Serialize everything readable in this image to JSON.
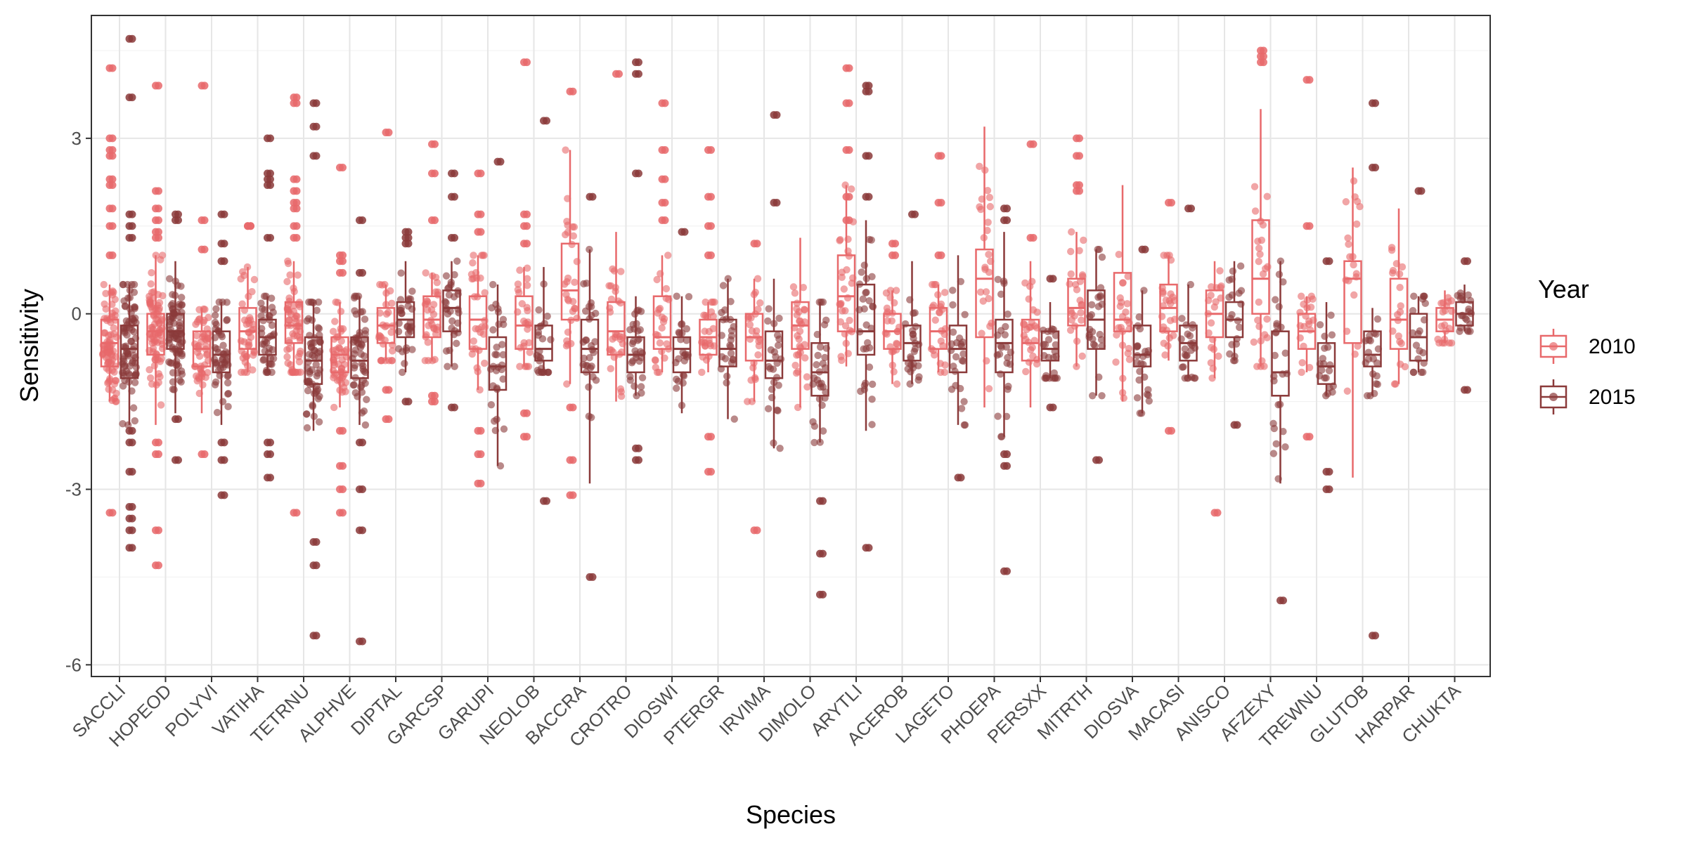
{
  "chart_data": {
    "type": "boxplot",
    "xlabel": "Species",
    "ylabel": "Sensitivity",
    "ylim": [
      -6.2,
      5.1
    ],
    "yticks": [
      -6,
      -3,
      0,
      3
    ],
    "ytick_labels": [
      "-6",
      "-3",
      "0",
      "3"
    ],
    "grid": true,
    "legend": {
      "title": "Year",
      "position": "right"
    },
    "categories": [
      "SACCLI",
      "HOPEOD",
      "POLYVI",
      "VATIHA",
      "TETRNU",
      "ALPHVE",
      "DIPTAL",
      "GARCSP",
      "GARUPI",
      "NEOLOB",
      "BACCRA",
      "CROTRO",
      "DIOSWI",
      "PTERGR",
      "IRVIMA",
      "DIMOLO",
      "ARYTLI",
      "ACEROB",
      "LAGETO",
      "PHOEPA",
      "PERSXX",
      "MITRTH",
      "DIOSVA",
      "MACASI",
      "ANISCO",
      "AFZEXY",
      "TREWNU",
      "GLUTOB",
      "HARPAR",
      "CHUKTA"
    ],
    "series": [
      {
        "name": "2010",
        "color": "#E8696B",
        "boxes": [
          {
            "min": -1.5,
            "q1": -0.9,
            "median": -0.5,
            "q3": -0.1,
            "max": 0.5,
            "n": 80,
            "outliers": [
              4.2,
              3.0,
              2.8,
              2.7,
              2.3,
              2.2,
              1.8,
              1.5,
              1.0,
              -3.4
            ]
          },
          {
            "min": -1.9,
            "q1": -0.7,
            "median": -0.3,
            "q3": 0.0,
            "max": 1.0,
            "n": 80,
            "outliers": [
              3.9,
              2.1,
              1.8,
              1.6,
              1.4,
              1.3,
              -2.2,
              -2.4,
              -3.7,
              -4.3
            ]
          },
          {
            "min": -1.7,
            "q1": -0.9,
            "median": -0.6,
            "q3": -0.3,
            "max": 0.1,
            "n": 50,
            "outliers": [
              3.9,
              1.6,
              1.1,
              -2.4
            ]
          },
          {
            "min": -1.0,
            "q1": -0.6,
            "median": -0.3,
            "q3": 0.1,
            "max": 0.8,
            "n": 40,
            "outliers": [
              1.5,
              1.5
            ]
          },
          {
            "min": -1.0,
            "q1": -0.5,
            "median": -0.2,
            "q3": 0.2,
            "max": 0.9,
            "n": 60,
            "outliers": [
              3.7,
              3.6,
              2.3,
              2.1,
              1.9,
              1.8,
              1.5,
              1.3,
              -3.4
            ]
          },
          {
            "min": -1.6,
            "q1": -1.0,
            "median": -0.7,
            "q3": -0.4,
            "max": 0.2,
            "n": 50,
            "outliers": [
              2.5,
              1.0,
              0.9,
              0.7,
              -2.0,
              -2.6,
              -3.0,
              -3.4
            ]
          },
          {
            "min": -0.8,
            "q1": -0.5,
            "median": -0.2,
            "q3": 0.1,
            "max": 0.5,
            "n": 30,
            "outliers": [
              3.1,
              -1.3,
              -1.8
            ]
          },
          {
            "min": -0.8,
            "q1": -0.4,
            "median": -0.1,
            "q3": 0.3,
            "max": 0.7,
            "n": 30,
            "outliers": [
              2.9,
              2.4,
              1.6,
              -1.4,
              -1.5
            ]
          },
          {
            "min": -1.3,
            "q1": -0.6,
            "median": -0.1,
            "q3": 0.3,
            "max": 1.0,
            "n": 30,
            "outliers": [
              2.4,
              1.7,
              1.4,
              -2.0,
              -2.4,
              -2.9
            ]
          },
          {
            "min": -0.9,
            "q1": -0.6,
            "median": -0.2,
            "q3": 0.3,
            "max": 0.8,
            "n": 25,
            "outliers": [
              4.3,
              1.7,
              1.5,
              1.2,
              -1.7,
              -2.1
            ]
          },
          {
            "min": -1.2,
            "q1": -0.1,
            "median": 0.4,
            "q3": 1.2,
            "max": 2.8,
            "n": 30,
            "outliers": [
              3.8,
              -1.6,
              -2.5,
              -3.1
            ]
          },
          {
            "min": -1.5,
            "q1": -0.7,
            "median": -0.3,
            "q3": 0.2,
            "max": 1.4,
            "n": 30,
            "outliers": [
              4.1
            ]
          },
          {
            "min": -1.0,
            "q1": -0.6,
            "median": -0.4,
            "q3": 0.3,
            "max": 1.0,
            "n": 25,
            "outliers": [
              3.6,
              2.8,
              2.3,
              1.9,
              1.6
            ]
          },
          {
            "min": -1.0,
            "q1": -0.7,
            "median": -0.4,
            "q3": -0.1,
            "max": 0.2,
            "n": 25,
            "outliers": [
              2.8,
              2.0,
              1.5,
              1.0,
              -2.1,
              -2.7
            ]
          },
          {
            "min": -1.5,
            "q1": -0.8,
            "median": -0.4,
            "q3": 0.0,
            "max": 0.6,
            "n": 25,
            "outliers": [
              1.2,
              -3.7
            ]
          },
          {
            "min": -1.6,
            "q1": -0.6,
            "median": -0.2,
            "q3": 0.2,
            "max": 1.3,
            "n": 30,
            "outliers": []
          },
          {
            "min": -0.9,
            "q1": -0.3,
            "median": 0.3,
            "q3": 1.0,
            "max": 2.2,
            "n": 30,
            "outliers": [
              4.2,
              3.6,
              2.8,
              2.0,
              1.6
            ]
          },
          {
            "min": -1.2,
            "q1": -0.6,
            "median": -0.3,
            "q3": 0.0,
            "max": 0.4,
            "n": 25,
            "outliers": [
              1.2,
              1.0
            ]
          },
          {
            "min": -1.0,
            "q1": -0.6,
            "median": -0.3,
            "q3": 0.1,
            "max": 0.5,
            "n": 25,
            "outliers": [
              2.7,
              1.9,
              1.0
            ]
          },
          {
            "min": -1.6,
            "q1": -0.4,
            "median": 0.6,
            "q3": 1.1,
            "max": 3.2,
            "n": 25,
            "outliers": []
          },
          {
            "min": -1.6,
            "q1": -0.8,
            "median": -0.5,
            "q3": -0.1,
            "max": 0.9,
            "n": 25,
            "outliers": [
              2.9,
              1.3
            ]
          },
          {
            "min": -0.9,
            "q1": -0.2,
            "median": 0.1,
            "q3": 0.6,
            "max": 1.4,
            "n": 25,
            "outliers": [
              3.0,
              2.7,
              2.2,
              2.1
            ]
          },
          {
            "min": -1.5,
            "q1": -0.3,
            "median": -0.1,
            "q3": 0.7,
            "max": 2.2,
            "n": 25,
            "outliers": []
          },
          {
            "min": -0.8,
            "q1": -0.3,
            "median": 0.1,
            "q3": 0.5,
            "max": 1.0,
            "n": 25,
            "outliers": [
              1.9,
              -2.0
            ]
          },
          {
            "min": -1.1,
            "q1": -0.4,
            "median": 0.0,
            "q3": 0.4,
            "max": 0.9,
            "n": 20,
            "outliers": [
              -3.4
            ]
          },
          {
            "min": -0.9,
            "q1": 0.0,
            "median": 0.6,
            "q3": 1.6,
            "max": 3.5,
            "n": 25,
            "outliers": [
              4.5,
              4.4,
              4.3
            ]
          },
          {
            "min": -1.0,
            "q1": -0.6,
            "median": -0.3,
            "q3": 0.0,
            "max": 0.3,
            "n": 20,
            "outliers": [
              4.0,
              1.5,
              -2.1
            ]
          },
          {
            "min": -2.8,
            "q1": -0.5,
            "median": 0.6,
            "q3": 0.9,
            "max": 2.5,
            "n": 20,
            "outliers": []
          },
          {
            "min": -1.2,
            "q1": -0.6,
            "median": -0.1,
            "q3": 0.6,
            "max": 1.8,
            "n": 20,
            "outliers": []
          },
          {
            "min": -0.5,
            "q1": -0.3,
            "median": -0.1,
            "q3": 0.1,
            "max": 0.4,
            "n": 20,
            "outliers": []
          }
        ]
      },
      {
        "name": "2015",
        "color": "#8B3A3A",
        "boxes": [
          {
            "min": -1.9,
            "q1": -1.1,
            "median": -0.6,
            "q3": -0.2,
            "max": 0.5,
            "n": 80,
            "outliers": [
              4.7,
              3.7,
              1.7,
              1.5,
              1.3,
              -2.0,
              -2.2,
              -2.7,
              -3.3,
              -3.5,
              -3.7,
              -4.0
            ]
          },
          {
            "min": -1.7,
            "q1": -0.6,
            "median": -0.3,
            "q3": 0.0,
            "max": 0.9,
            "n": 80,
            "outliers": [
              1.7,
              1.6,
              -1.8,
              -2.5
            ]
          },
          {
            "min": -1.9,
            "q1": -1.0,
            "median": -0.7,
            "q3": -0.3,
            "max": 0.2,
            "n": 50,
            "outliers": [
              1.7,
              1.2,
              0.9,
              -2.2,
              -2.5,
              -3.1
            ]
          },
          {
            "min": -1.0,
            "q1": -0.7,
            "median": -0.4,
            "q3": -0.1,
            "max": 0.3,
            "n": 40,
            "outliers": [
              3.0,
              2.4,
              2.3,
              2.2,
              1.3,
              -2.2,
              -2.4,
              -2.8
            ]
          },
          {
            "min": -2.0,
            "q1": -1.2,
            "median": -0.8,
            "q3": -0.4,
            "max": 0.2,
            "n": 60,
            "outliers": [
              3.6,
              3.2,
              2.7,
              -3.9,
              -4.3,
              -5.5
            ]
          },
          {
            "min": -1.9,
            "q1": -1.1,
            "median": -0.8,
            "q3": -0.4,
            "max": 0.3,
            "n": 50,
            "outliers": [
              1.6,
              0.7,
              -2.2,
              -3.0,
              -3.7,
              -5.6
            ]
          },
          {
            "min": -1.0,
            "q1": -0.4,
            "median": -0.1,
            "q3": 0.2,
            "max": 0.9,
            "n": 30,
            "outliers": [
              1.4,
              1.3,
              1.2,
              -1.5
            ]
          },
          {
            "min": -0.9,
            "q1": -0.3,
            "median": 0.1,
            "q3": 0.4,
            "max": 0.9,
            "n": 30,
            "outliers": [
              2.4,
              2.0,
              1.3,
              -1.6
            ]
          },
          {
            "min": -2.6,
            "q1": -1.3,
            "median": -0.9,
            "q3": -0.4,
            "max": 0.5,
            "n": 30,
            "outliers": [
              2.6
            ]
          },
          {
            "min": -1.0,
            "q1": -0.8,
            "median": -0.6,
            "q3": -0.2,
            "max": 0.8,
            "n": 25,
            "outliers": [
              3.3,
              -3.2
            ]
          },
          {
            "min": -2.9,
            "q1": -1.0,
            "median": -0.6,
            "q3": -0.1,
            "max": 1.1,
            "n": 30,
            "outliers": [
              2.0,
              -4.5
            ]
          },
          {
            "min": -1.4,
            "q1": -1.0,
            "median": -0.7,
            "q3": -0.4,
            "max": 0.3,
            "n": 30,
            "outliers": [
              4.3,
              4.1,
              2.4,
              -2.3,
              -2.5
            ]
          },
          {
            "min": -1.7,
            "q1": -1.0,
            "median": -0.6,
            "q3": -0.4,
            "max": 0.3,
            "n": 25,
            "outliers": [
              1.4
            ]
          },
          {
            "min": -1.8,
            "q1": -0.9,
            "median": -0.6,
            "q3": -0.1,
            "max": 0.6,
            "n": 25,
            "outliers": []
          },
          {
            "min": -2.3,
            "q1": -1.1,
            "median": -0.8,
            "q3": -0.3,
            "max": 0.6,
            "n": 25,
            "outliers": [
              3.4,
              1.9
            ]
          },
          {
            "min": -2.2,
            "q1": -1.4,
            "median": -1.0,
            "q3": -0.5,
            "max": 0.2,
            "n": 30,
            "outliers": [
              -3.2,
              -4.1,
              -4.8
            ]
          },
          {
            "min": -2.0,
            "q1": -0.7,
            "median": -0.3,
            "q3": 0.5,
            "max": 1.6,
            "n": 30,
            "outliers": [
              3.9,
              3.8,
              2.7,
              2.0,
              -4.0
            ]
          },
          {
            "min": -1.2,
            "q1": -0.8,
            "median": -0.5,
            "q3": -0.2,
            "max": 0.9,
            "n": 25,
            "outliers": [
              1.7
            ]
          },
          {
            "min": -1.9,
            "q1": -1.0,
            "median": -0.6,
            "q3": -0.2,
            "max": 1.0,
            "n": 25,
            "outliers": [
              -2.8
            ]
          },
          {
            "min": -2.1,
            "q1": -1.0,
            "median": -0.5,
            "q3": -0.1,
            "max": 1.4,
            "n": 25,
            "outliers": [
              1.8,
              1.6,
              -2.4,
              -2.6,
              -4.4
            ]
          },
          {
            "min": -1.1,
            "q1": -0.8,
            "median": -0.6,
            "q3": -0.3,
            "max": 0.2,
            "n": 25,
            "outliers": [
              0.6,
              -1.6
            ]
          },
          {
            "min": -1.4,
            "q1": -0.6,
            "median": -0.1,
            "q3": 0.4,
            "max": 1.1,
            "n": 25,
            "outliers": [
              -2.5
            ]
          },
          {
            "min": -1.7,
            "q1": -0.9,
            "median": -0.7,
            "q3": -0.2,
            "max": 0.4,
            "n": 25,
            "outliers": [
              1.1
            ]
          },
          {
            "min": -1.1,
            "q1": -0.8,
            "median": -0.5,
            "q3": -0.2,
            "max": 0.5,
            "n": 25,
            "outliers": [
              1.8
            ]
          },
          {
            "min": -0.8,
            "q1": -0.4,
            "median": -0.1,
            "q3": 0.2,
            "max": 0.9,
            "n": 20,
            "outliers": [
              -1.9
            ]
          },
          {
            "min": -2.9,
            "q1": -1.4,
            "median": -1.0,
            "q3": -0.3,
            "max": 0.9,
            "n": 25,
            "outliers": [
              -4.9
            ]
          },
          {
            "min": -1.4,
            "q1": -1.2,
            "median": -0.9,
            "q3": -0.5,
            "max": 0.2,
            "n": 20,
            "outliers": [
              0.9,
              -2.7,
              -3.0
            ]
          },
          {
            "min": -1.4,
            "q1": -0.9,
            "median": -0.7,
            "q3": -0.3,
            "max": 0.1,
            "n": 20,
            "outliers": [
              3.6,
              2.5,
              -5.5
            ]
          },
          {
            "min": -1.0,
            "q1": -0.8,
            "median": -0.4,
            "q3": 0.0,
            "max": 0.3,
            "n": 20,
            "outliers": [
              2.1
            ]
          },
          {
            "min": -0.3,
            "q1": -0.2,
            "median": 0.0,
            "q3": 0.2,
            "max": 0.5,
            "n": 20,
            "outliers": [
              0.9,
              -1.3
            ]
          }
        ]
      }
    ]
  }
}
